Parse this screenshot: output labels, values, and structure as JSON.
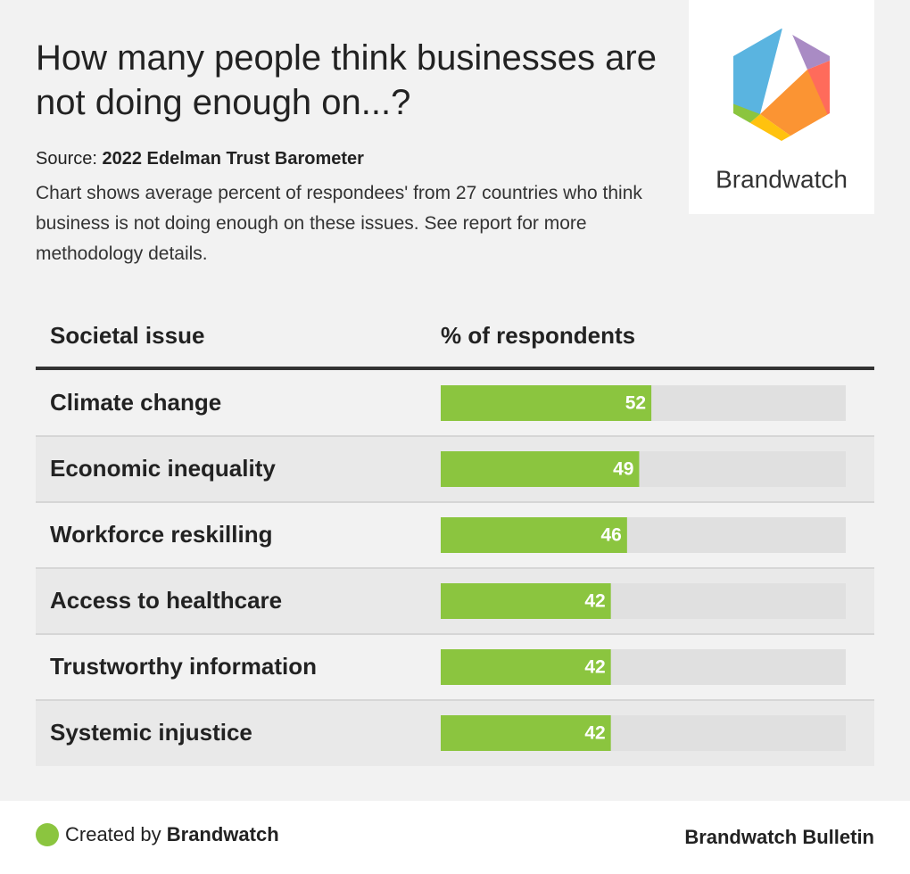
{
  "chart_data": {
    "type": "bar",
    "title": "How many people think businesses are not doing enough on...?",
    "source_label": "Source:",
    "source": "2022 Edelman Trust Barometer",
    "description": "Chart shows average percent of respondees' from 27 countries who think business is not doing enough on these issues. See report for more methodology details.",
    "category_header": "Societal issue",
    "value_header": "% of respondents",
    "categories": [
      "Climate change",
      "Economic inequality",
      "Workforce reskilling",
      "Access to healthcare",
      "Trustworthy information",
      "Systemic injustice"
    ],
    "values": [
      52,
      49,
      46,
      42,
      42,
      42
    ],
    "color": "#8bc53f",
    "xlim": [
      0,
      100
    ]
  },
  "logo": {
    "text": "Brandwatch"
  },
  "footer": {
    "prefix": "Created by",
    "brand": "Brandwatch",
    "right": "Brandwatch Bulletin"
  }
}
